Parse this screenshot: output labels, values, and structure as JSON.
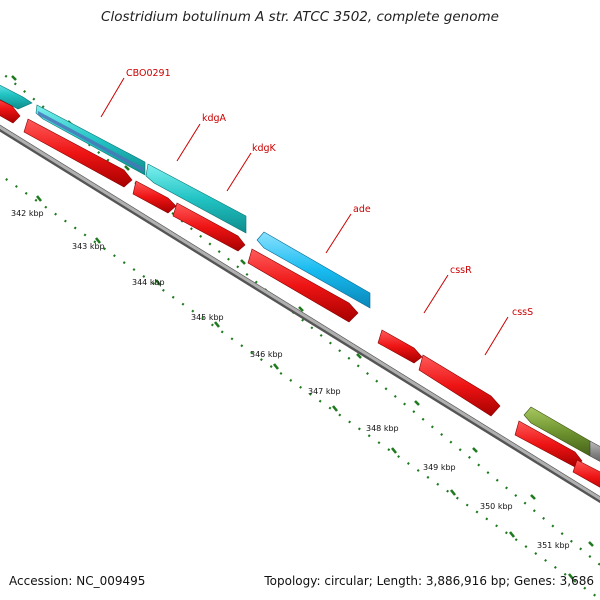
{
  "title": "Clostridium botulinum A str. ATCC 3502, complete genome",
  "footer": {
    "accession": "Accession: NC_009495",
    "topology": "Topology: circular; Length: 3,886,916 bp; Genes: 3,686"
  },
  "colors": {
    "backbone": "#8a8a8a",
    "cds_forward": "#e81818",
    "cds_reverse_teal": "#20c8c8",
    "cds_reverse_blue": "#18bff0",
    "cds_reverse_olive": "#6f9430",
    "cds_reverse_gray": "#808080",
    "label": "#cc0000",
    "tick": "#1f7a1f"
  },
  "tick_labels": [
    "342 kbp",
    "343 kbp",
    "344 kbp",
    "345 kbp",
    "346 kbp",
    "347 kbp",
    "348 kbp",
    "349 kbp",
    "350 kbp",
    "351 kbp"
  ],
  "gene_labels": [
    {
      "name": "CBO0291"
    },
    {
      "name": "kdgA"
    },
    {
      "name": "kdgK"
    },
    {
      "name": "ade"
    },
    {
      "name": "cssR"
    },
    {
      "name": "cssS"
    }
  ]
}
